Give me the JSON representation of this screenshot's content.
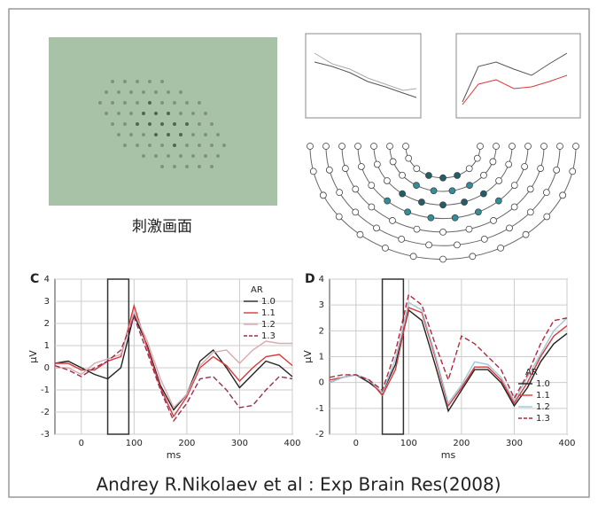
{
  "caption": "刺激画面",
  "citation": "Andrey R.Nikolaev et al : Exp Brain Res(2008)",
  "chart_data": [
    {
      "type": "line",
      "panel": "C",
      "ylabel": "μV",
      "xlabel": "ms",
      "legend_title": "AR",
      "legend": "upper right",
      "x": [
        -50,
        -25,
        0,
        25,
        50,
        75,
        100,
        125,
        150,
        175,
        200,
        225,
        250,
        275,
        300,
        325,
        350,
        375,
        400
      ],
      "xlim": [
        -50,
        400
      ],
      "xticks": [
        0,
        100,
        200,
        300,
        400
      ],
      "ylim": [
        -3,
        4
      ],
      "yticks": [
        -3,
        -2,
        -1,
        0,
        1,
        2,
        3,
        4
      ],
      "grid": true,
      "highlight": [
        50,
        90
      ],
      "series": [
        {
          "name": "1.0",
          "color": "#222222",
          "style": "solid",
          "values": [
            0.2,
            0.3,
            0,
            -0.3,
            -0.5,
            0,
            2.4,
            1.0,
            -0.8,
            -1.9,
            -1.2,
            0.3,
            0.8,
            0,
            -0.9,
            -0.3,
            0.3,
            0.1,
            -0.4
          ]
        },
        {
          "name": "1.1",
          "color": "#d8383a",
          "style": "solid",
          "values": [
            0.2,
            0.2,
            -0.1,
            -0.1,
            0.3,
            0.5,
            2.8,
            0.9,
            -0.9,
            -2.2,
            -1.3,
            0,
            0.5,
            0.1,
            -0.6,
            0,
            0.5,
            0.6,
            0.1
          ]
        },
        {
          "name": "1.2",
          "color": "#d9a9b0",
          "style": "solid",
          "values": [
            0,
            0,
            -0.3,
            0.2,
            0.4,
            0.6,
            2.5,
            1.2,
            -0.5,
            -1.8,
            -1.2,
            0.1,
            0.7,
            0.8,
            0.2,
            0.8,
            1.2,
            1.1,
            1.1
          ]
        },
        {
          "name": "1.3",
          "color": "#9a2d55",
          "style": "dashed",
          "values": [
            0.1,
            -0.1,
            -0.4,
            0,
            0.3,
            0.8,
            2.3,
            0.7,
            -1.0,
            -2.4,
            -1.6,
            -0.5,
            -0.4,
            -1.0,
            -1.8,
            -1.7,
            -1.0,
            -0.4,
            -0.5
          ]
        }
      ]
    },
    {
      "type": "line",
      "panel": "D",
      "ylabel": "μV",
      "xlabel": "ms",
      "legend_title": "AR",
      "legend": "lower right",
      "x": [
        -50,
        -25,
        0,
        25,
        50,
        75,
        100,
        125,
        150,
        175,
        200,
        225,
        250,
        275,
        300,
        325,
        350,
        375,
        400
      ],
      "xlim": [
        -50,
        400
      ],
      "xticks": [
        0,
        100,
        200,
        300,
        400
      ],
      "ylim": [
        -2,
        4
      ],
      "yticks": [
        -2,
        -1,
        0,
        1,
        2,
        3,
        4
      ],
      "grid": true,
      "highlight": [
        50,
        90
      ],
      "series": [
        {
          "name": "1.0",
          "color": "#222222",
          "style": "solid",
          "values": [
            0,
            0.2,
            0.3,
            0,
            -0.4,
            0.7,
            2.8,
            2.4,
            0.7,
            -1.1,
            -0.3,
            0.5,
            0.5,
            0,
            -0.9,
            -0.2,
            0.8,
            1.5,
            1.9
          ]
        },
        {
          "name": "1.1",
          "color": "#d8383a",
          "style": "solid",
          "values": [
            0.1,
            0.2,
            0.3,
            0.1,
            -0.5,
            0.5,
            2.9,
            2.7,
            1.0,
            -0.9,
            -0.2,
            0.6,
            0.6,
            0.1,
            -0.8,
            0,
            1.0,
            1.8,
            2.2
          ]
        },
        {
          "name": "1.2",
          "color": "#9fc6d8",
          "style": "solid",
          "values": [
            0,
            0.2,
            0.3,
            0.1,
            -0.4,
            0.9,
            3.1,
            2.8,
            1.1,
            -0.8,
            -0.1,
            0.8,
            0.7,
            0.2,
            -0.7,
            0.2,
            1.1,
            2.0,
            2.5
          ]
        },
        {
          "name": "1.3",
          "color": "#b32a3c",
          "style": "dashed",
          "values": [
            0.2,
            0.3,
            0.3,
            0.1,
            -0.3,
            1.2,
            3.4,
            3.0,
            1.5,
            0.1,
            1.8,
            1.5,
            1.0,
            0.5,
            -0.6,
            0.3,
            1.5,
            2.4,
            2.5
          ]
        }
      ]
    }
  ]
}
